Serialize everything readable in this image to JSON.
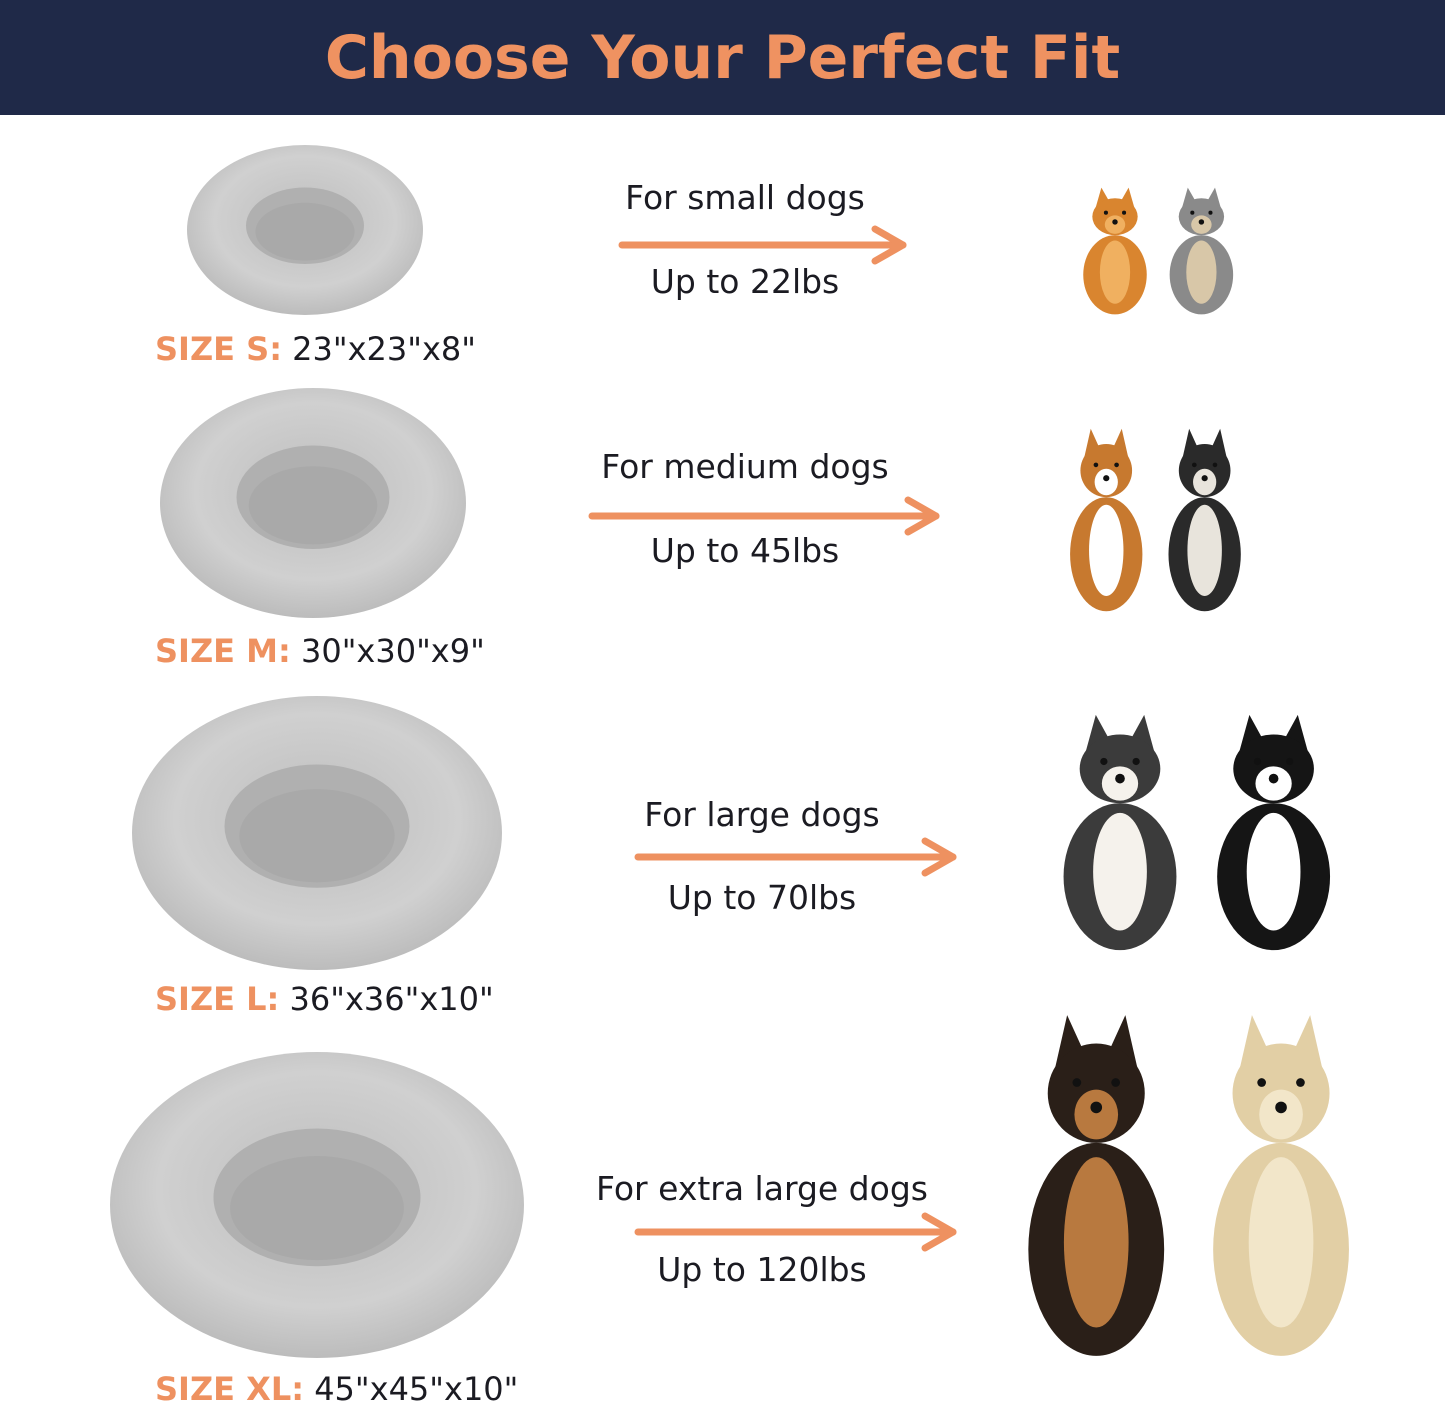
{
  "title": "Choose Your Perfect Fit",
  "colors": {
    "banner": "#1f2948",
    "accent": "#ee9160",
    "text": "#1b1b22",
    "bed": "#c9c9c9"
  },
  "sizes": [
    {
      "size_prefix": "SIZE S:",
      "dimensions": "23\"x23\"x8\"",
      "for": "For small dogs",
      "weight": "Up to 22lbs",
      "dogs": [
        "pomeranian",
        "yorkshire-terrier"
      ]
    },
    {
      "size_prefix": "SIZE M:",
      "dimensions": "30\"x30\"x9\"",
      "for": "For medium dogs",
      "weight": "Up to 45lbs",
      "dogs": [
        "beagle",
        "french-bulldog"
      ]
    },
    {
      "size_prefix": "SIZE L:",
      "dimensions": "36\"x36\"x10\"",
      "for": "For large dogs",
      "weight": "Up to 70lbs",
      "dogs": [
        "australian-shepherd",
        "border-collie"
      ]
    },
    {
      "size_prefix": "SIZE XL:",
      "dimensions": "45\"x45\"x10\"",
      "for": "For extra large dogs",
      "weight": "Up to 120lbs",
      "dogs": [
        "german-shepherd",
        "golden-retriever"
      ]
    }
  ]
}
